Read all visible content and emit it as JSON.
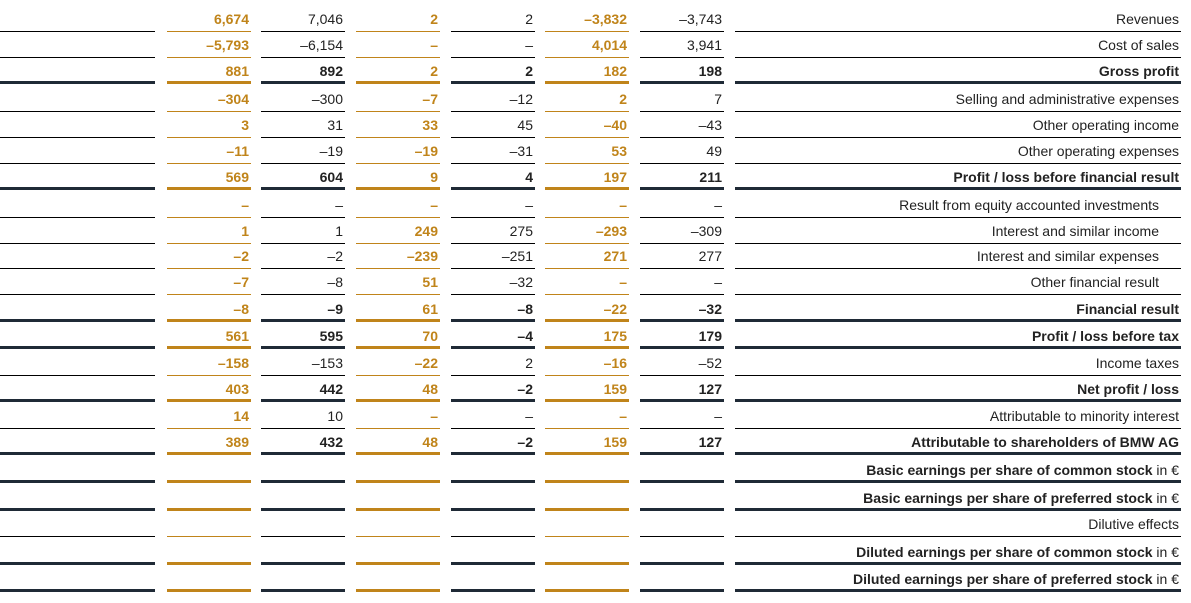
{
  "rows": [
    {
      "label": "Revenues",
      "unit": "",
      "bold": false,
      "pad": false,
      "v": [
        "6,674",
        "7,046",
        "2",
        "2",
        "–3,832",
        "–3,743"
      ]
    },
    {
      "label": "Cost of sales",
      "unit": "",
      "bold": false,
      "pad": false,
      "v": [
        "–5,793",
        "–6,154",
        "–",
        "–",
        "4,014",
        "3,941"
      ]
    },
    {
      "label": "Gross profit",
      "unit": "",
      "bold": true,
      "pad": false,
      "v": [
        "881",
        "892",
        "2",
        "2",
        "182",
        "198"
      ]
    },
    {
      "label": "Selling and administrative expenses",
      "unit": "",
      "bold": false,
      "pad": false,
      "v": [
        "–304",
        "–300",
        "–7",
        "–12",
        "2",
        "7"
      ]
    },
    {
      "label": "Other operating income",
      "unit": "",
      "bold": false,
      "pad": false,
      "v": [
        "3",
        "31",
        "33",
        "45",
        "–40",
        "–43"
      ]
    },
    {
      "label": "Other operating expenses",
      "unit": "",
      "bold": false,
      "pad": false,
      "v": [
        "–11",
        "–19",
        "–19",
        "–31",
        "53",
        "49"
      ]
    },
    {
      "label": "Profit / loss before financial result",
      "unit": "",
      "bold": true,
      "pad": false,
      "v": [
        "569",
        "604",
        "9",
        "4",
        "197",
        "211"
      ]
    },
    {
      "label": "Result from equity accounted investments",
      "unit": "",
      "bold": false,
      "pad": true,
      "v": [
        "–",
        "–",
        "–",
        "–",
        "–",
        "–"
      ]
    },
    {
      "label": "Interest and similar income",
      "unit": "",
      "bold": false,
      "pad": true,
      "v": [
        "1",
        "1",
        "249",
        "275",
        "–293",
        "–309"
      ]
    },
    {
      "label": "Interest and similar expenses",
      "unit": "",
      "bold": false,
      "pad": true,
      "v": [
        "–2",
        "–2",
        "–239",
        "–251",
        "271",
        "277"
      ]
    },
    {
      "label": "Other financial result",
      "unit": "",
      "bold": false,
      "pad": true,
      "v": [
        "–7",
        "–8",
        "51",
        "–32",
        "–",
        "–"
      ]
    },
    {
      "label": "Financial result",
      "unit": "",
      "bold": true,
      "pad": false,
      "v": [
        "–8",
        "–9",
        "61",
        "–8",
        "–22",
        "–32"
      ]
    },
    {
      "label": "Profit / loss before tax",
      "unit": "",
      "bold": true,
      "pad": false,
      "v": [
        "561",
        "595",
        "70",
        "–4",
        "175",
        "179"
      ]
    },
    {
      "label": "Income taxes",
      "unit": "",
      "bold": false,
      "pad": false,
      "v": [
        "–158",
        "–153",
        "–22",
        "2",
        "–16",
        "–52"
      ]
    },
    {
      "label": "Net profit / loss",
      "unit": "",
      "bold": true,
      "pad": false,
      "v": [
        "403",
        "442",
        "48",
        "–2",
        "159",
        "127"
      ]
    },
    {
      "label": "Attributable to minority interest",
      "unit": "",
      "bold": false,
      "pad": false,
      "v": [
        "14",
        "10",
        "–",
        "–",
        "–",
        "–"
      ]
    },
    {
      "label": "Attributable to shareholders of BMW AG",
      "unit": "",
      "bold": true,
      "pad": false,
      "v": [
        "389",
        "432",
        "48",
        "–2",
        "159",
        "127"
      ]
    },
    {
      "label": "Basic earnings per share of common stock",
      "unit": " in €",
      "bold": true,
      "pad": false,
      "v": [
        "",
        "",
        "",
        "",
        "",
        ""
      ]
    },
    {
      "label": "Basic earnings per share of preferred stock",
      "unit": " in €",
      "bold": true,
      "pad": false,
      "v": [
        "",
        "",
        "",
        "",
        "",
        ""
      ]
    },
    {
      "label": "Dilutive effects",
      "unit": "",
      "bold": false,
      "pad": false,
      "v": [
        "",
        "",
        "",
        "",
        "",
        ""
      ]
    },
    {
      "label": "Diluted earnings per share of common stock",
      "unit": " in €",
      "bold": true,
      "pad": false,
      "v": [
        "",
        "",
        "",
        "",
        "",
        ""
      ]
    },
    {
      "label": "Diluted earnings per share of preferred stock",
      "unit": " in €",
      "bold": true,
      "pad": false,
      "v": [
        "",
        "",
        "",
        "",
        "",
        ""
      ]
    }
  ]
}
